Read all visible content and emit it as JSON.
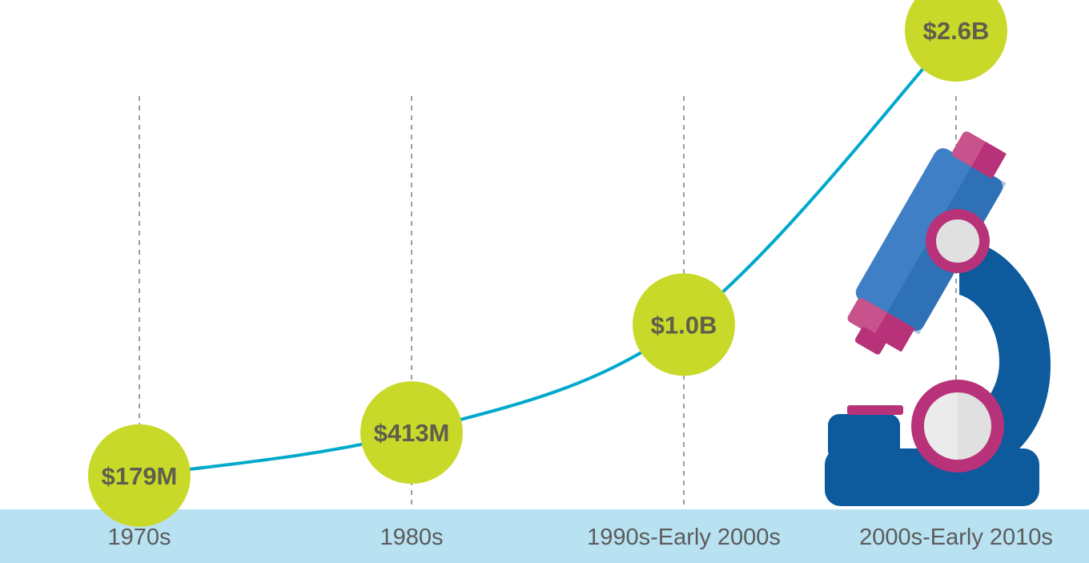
{
  "chart_data": {
    "type": "line",
    "categories": [
      "1970s",
      "1980s",
      "1990s-Early 2000s",
      "2000s-Early 2010s"
    ],
    "values": [
      179,
      413,
      1000,
      2600
    ],
    "value_labels": [
      "$179M",
      "$413M",
      "$1.0B",
      "$2.6B"
    ],
    "title": "",
    "xlabel": "",
    "ylabel": "",
    "ylim": [
      0,
      2700
    ],
    "grid": "vertical dashed lines at each category",
    "legend": "none"
  },
  "colors": {
    "line": "#00a9cc",
    "bubble": "#c9d929",
    "axis_band": "#b8e2f2",
    "value_text": "#5e5f4c",
    "tick_text": "#5b5b5b",
    "gridline": "#7f7f7f",
    "microscope_blue": "#0d5a9c",
    "microscope_light_blue": "#3f7fc5",
    "microscope_magenta": "#b8327a",
    "microscope_pink": "#c7528c",
    "microscope_lens": "#e0e0e0"
  },
  "decoration": {
    "icon": "microscope-icon"
  }
}
